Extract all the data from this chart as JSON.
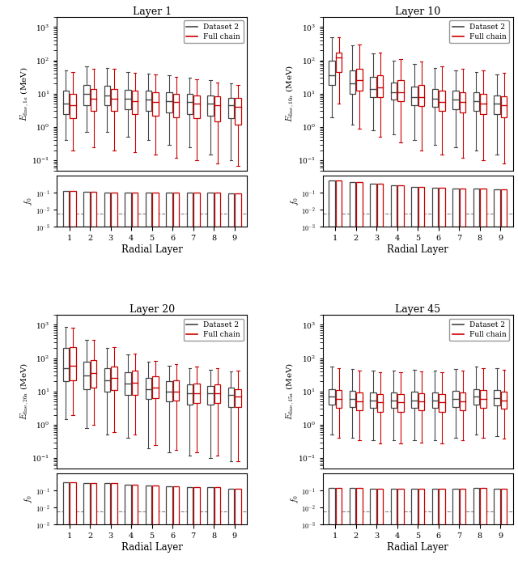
{
  "panels": [
    {
      "title": "Layer 1",
      "ylabel_main": "$E_{\\mathrm{fine},1a}$ (MeV)",
      "ylabel_f0": "$f_0$",
      "ylim_main": [
        0.05,
        2000
      ],
      "black_boxes": {
        "medians": [
          5.0,
          10.0,
          9.0,
          7.0,
          6.5,
          6.0,
          5.5,
          5.0,
          4.5
        ],
        "q1": [
          2.5,
          4.5,
          4.5,
          3.5,
          3.0,
          2.8,
          2.5,
          2.2,
          1.8
        ],
        "q3": [
          12.0,
          18.0,
          17.0,
          13.0,
          12.0,
          11.0,
          10.0,
          9.0,
          7.5
        ],
        "whislo": [
          0.4,
          0.7,
          0.7,
          0.5,
          0.4,
          0.3,
          0.25,
          0.15,
          0.1
        ],
        "whishi": [
          50.0,
          65.0,
          60.0,
          45.0,
          40.0,
          35.0,
          30.0,
          25.0,
          20.0
        ]
      },
      "red_boxes": {
        "medians": [
          4.5,
          7.0,
          7.0,
          6.0,
          5.5,
          5.5,
          5.0,
          4.5,
          4.0
        ],
        "q1": [
          1.8,
          3.0,
          3.0,
          2.5,
          2.2,
          2.0,
          1.8,
          1.5,
          1.2
        ],
        "q3": [
          10.0,
          14.0,
          14.0,
          12.0,
          11.0,
          10.0,
          9.0,
          8.5,
          7.5
        ],
        "whislo": [
          0.2,
          0.25,
          0.2,
          0.18,
          0.15,
          0.12,
          0.1,
          0.08,
          0.07
        ],
        "whishi": [
          45.0,
          55.0,
          55.0,
          42.0,
          38.0,
          32.0,
          27.0,
          22.0,
          18.0
        ]
      },
      "black_f0": {
        "medians": [
          0.0002,
          0.0002,
          0.0002,
          0.0002,
          0.0002,
          0.0002,
          0.0002,
          0.0002,
          0.0002
        ],
        "q1": [
          0.001,
          0.001,
          0.001,
          0.001,
          0.001,
          0.001,
          0.001,
          0.001,
          0.001
        ],
        "q3": [
          0.13,
          0.11,
          0.1,
          0.1,
          0.1,
          0.1,
          0.1,
          0.1,
          0.09
        ],
        "whislo": [
          0.001,
          0.001,
          0.001,
          0.001,
          0.001,
          0.001,
          0.001,
          0.001,
          0.001
        ],
        "whishi": [
          0.13,
          0.11,
          0.1,
          0.1,
          0.1,
          0.1,
          0.1,
          0.1,
          0.09
        ]
      },
      "red_f0": {
        "medians": [
          0.0002,
          0.0002,
          0.0002,
          0.0002,
          0.0002,
          0.0002,
          0.0002,
          0.0002,
          0.0002
        ],
        "q1": [
          0.001,
          0.001,
          0.001,
          0.001,
          0.001,
          0.001,
          0.001,
          0.001,
          0.001
        ],
        "q3": [
          0.13,
          0.11,
          0.1,
          0.1,
          0.1,
          0.1,
          0.1,
          0.1,
          0.09
        ],
        "whislo": [
          0.001,
          0.001,
          0.001,
          0.001,
          0.001,
          0.001,
          0.001,
          0.001,
          0.001
        ],
        "whishi": [
          0.13,
          0.11,
          0.1,
          0.1,
          0.1,
          0.1,
          0.1,
          0.1,
          0.09
        ]
      }
    },
    {
      "title": "Layer 10",
      "ylabel_main": "$E_{\\mathrm{fine},10a}$ (MeV)",
      "ylabel_f0": "$f_0$",
      "ylim_main": [
        0.05,
        2000
      ],
      "black_boxes": {
        "medians": [
          35.0,
          20.0,
          14.0,
          11.0,
          8.0,
          7.0,
          6.5,
          6.0,
          5.0
        ],
        "q1": [
          18.0,
          10.0,
          8.0,
          6.5,
          4.5,
          4.0,
          3.5,
          3.0,
          2.5
        ],
        "q3": [
          100.0,
          50.0,
          32.0,
          22.0,
          16.0,
          14.0,
          12.0,
          11.0,
          9.0
        ],
        "whislo": [
          2.0,
          1.2,
          0.8,
          0.6,
          0.4,
          0.3,
          0.25,
          0.2,
          0.15
        ],
        "whishi": [
          500.0,
          280.0,
          160.0,
          100.0,
          80.0,
          60.0,
          50.0,
          45.0,
          38.0
        ]
      },
      "red_boxes": {
        "medians": [
          120.0,
          25.0,
          15.0,
          11.0,
          8.0,
          5.5,
          5.5,
          5.0,
          4.5
        ],
        "q1": [
          45.0,
          12.0,
          8.0,
          6.0,
          4.2,
          3.0,
          2.8,
          2.5,
          2.0
        ],
        "q3": [
          170.0,
          55.0,
          35.0,
          25.0,
          18.0,
          12.0,
          11.0,
          10.0,
          8.5
        ],
        "whislo": [
          5.0,
          0.9,
          0.5,
          0.35,
          0.2,
          0.15,
          0.12,
          0.1,
          0.08
        ],
        "whishi": [
          500.0,
          300.0,
          170.0,
          110.0,
          90.0,
          65.0,
          55.0,
          50.0,
          42.0
        ]
      },
      "black_f0": {
        "medians": [
          0.0002,
          0.0002,
          0.0002,
          0.0002,
          0.0002,
          0.0002,
          0.0002,
          0.0002,
          0.0002
        ],
        "q1": [
          0.001,
          0.001,
          0.001,
          0.001,
          0.001,
          0.001,
          0.001,
          0.001,
          0.001
        ],
        "q3": [
          0.5,
          0.4,
          0.32,
          0.28,
          0.22,
          0.2,
          0.18,
          0.18,
          0.15
        ],
        "whislo": [
          0.001,
          0.001,
          0.001,
          0.001,
          0.001,
          0.001,
          0.001,
          0.001,
          0.001
        ],
        "whishi": [
          0.5,
          0.4,
          0.32,
          0.28,
          0.22,
          0.2,
          0.18,
          0.18,
          0.15
        ]
      },
      "red_f0": {
        "medians": [
          0.0002,
          0.0002,
          0.0002,
          0.0002,
          0.0002,
          0.0002,
          0.0002,
          0.0002,
          0.0002
        ],
        "q1": [
          0.001,
          0.001,
          0.001,
          0.001,
          0.001,
          0.001,
          0.001,
          0.001,
          0.001
        ],
        "q3": [
          0.5,
          0.4,
          0.32,
          0.28,
          0.22,
          0.2,
          0.18,
          0.18,
          0.15
        ],
        "whislo": [
          0.001,
          0.001,
          0.001,
          0.001,
          0.001,
          0.001,
          0.001,
          0.001,
          0.001
        ],
        "whishi": [
          0.5,
          0.4,
          0.32,
          0.28,
          0.22,
          0.2,
          0.18,
          0.18,
          0.15
        ]
      }
    },
    {
      "title": "Layer 20",
      "ylabel_main": "$E_{\\mathrm{fine},20a}$ (MeV)",
      "ylabel_f0": "$f_0$",
      "ylim_main": [
        0.05,
        2000
      ],
      "black_boxes": {
        "medians": [
          50.0,
          30.0,
          22.0,
          17.0,
          12.0,
          10.0,
          9.0,
          9.0,
          8.0
        ],
        "q1": [
          20.0,
          12.0,
          10.0,
          8.0,
          6.0,
          5.0,
          4.0,
          4.0,
          3.5
        ],
        "q3": [
          200.0,
          80.0,
          50.0,
          38.0,
          25.0,
          20.0,
          16.0,
          15.0,
          13.0
        ],
        "whislo": [
          1.5,
          0.8,
          0.5,
          0.4,
          0.2,
          0.15,
          0.12,
          0.1,
          0.08
        ],
        "whishi": [
          850.0,
          350.0,
          200.0,
          130.0,
          80.0,
          60.0,
          50.0,
          45.0,
          40.0
        ]
      },
      "red_boxes": {
        "medians": [
          60.0,
          35.0,
          25.0,
          18.0,
          13.0,
          10.0,
          9.0,
          9.0,
          7.0
        ],
        "q1": [
          22.0,
          13.0,
          11.0,
          8.0,
          6.5,
          5.5,
          4.5,
          4.5,
          3.5
        ],
        "q3": [
          220.0,
          90.0,
          55.0,
          42.0,
          28.0,
          22.0,
          17.0,
          16.0,
          12.0
        ],
        "whislo": [
          2.0,
          1.0,
          0.6,
          0.5,
          0.25,
          0.18,
          0.15,
          0.12,
          0.08
        ],
        "whishi": [
          800.0,
          360.0,
          220.0,
          140.0,
          85.0,
          65.0,
          55.0,
          50.0,
          42.0
        ]
      },
      "black_f0": {
        "medians": [
          0.0002,
          0.0002,
          0.0002,
          0.0002,
          0.0002,
          0.0002,
          0.0002,
          0.0002,
          0.0002
        ],
        "q1": [
          0.001,
          0.001,
          0.001,
          0.001,
          0.001,
          0.001,
          0.001,
          0.001,
          0.001
        ],
        "q3": [
          0.3,
          0.28,
          0.26,
          0.22,
          0.2,
          0.18,
          0.16,
          0.15,
          0.13
        ],
        "whislo": [
          0.001,
          0.001,
          0.001,
          0.001,
          0.001,
          0.001,
          0.001,
          0.001,
          0.001
        ],
        "whishi": [
          0.3,
          0.28,
          0.26,
          0.22,
          0.2,
          0.18,
          0.16,
          0.15,
          0.13
        ]
      },
      "red_f0": {
        "medians": [
          0.0002,
          0.0002,
          0.0002,
          0.0002,
          0.0002,
          0.0002,
          0.0002,
          0.0002,
          0.0002
        ],
        "q1": [
          0.001,
          0.001,
          0.001,
          0.001,
          0.001,
          0.001,
          0.001,
          0.001,
          0.001
        ],
        "q3": [
          0.3,
          0.28,
          0.26,
          0.22,
          0.2,
          0.18,
          0.16,
          0.15,
          0.13
        ],
        "whislo": [
          0.001,
          0.001,
          0.001,
          0.001,
          0.001,
          0.001,
          0.001,
          0.001,
          0.001
        ],
        "whishi": [
          0.3,
          0.28,
          0.26,
          0.22,
          0.2,
          0.18,
          0.16,
          0.15,
          0.13
        ]
      }
    },
    {
      "title": "Layer 45",
      "ylabel_main": "$E_{\\mathrm{fine},45a}$ (MeV)",
      "ylabel_f0": "$f_0$",
      "ylim_main": [
        0.05,
        2000
      ],
      "black_boxes": {
        "medians": [
          7.0,
          6.0,
          5.5,
          5.5,
          5.5,
          5.5,
          6.0,
          7.0,
          6.5
        ],
        "q1": [
          4.0,
          3.5,
          3.2,
          3.2,
          3.2,
          3.2,
          3.5,
          4.0,
          3.8
        ],
        "q3": [
          12.0,
          10.5,
          9.5,
          9.5,
          10.0,
          9.5,
          10.5,
          12.0,
          11.0
        ],
        "whislo": [
          0.5,
          0.4,
          0.35,
          0.35,
          0.35,
          0.35,
          0.4,
          0.5,
          0.45
        ],
        "whishi": [
          55.0,
          48.0,
          42.0,
          42.0,
          45.0,
          42.0,
          48.0,
          55.0,
          50.0
        ]
      },
      "red_boxes": {
        "medians": [
          6.0,
          5.2,
          4.8,
          4.8,
          5.0,
          4.8,
          5.2,
          6.0,
          5.5
        ],
        "q1": [
          3.2,
          2.8,
          2.5,
          2.5,
          2.8,
          2.5,
          2.8,
          3.2,
          3.0
        ],
        "q3": [
          11.0,
          9.5,
          8.5,
          8.5,
          9.0,
          8.5,
          9.5,
          11.0,
          10.0
        ],
        "whislo": [
          0.4,
          0.35,
          0.28,
          0.28,
          0.3,
          0.28,
          0.35,
          0.4,
          0.38
        ],
        "whishi": [
          50.0,
          42.0,
          38.0,
          38.0,
          40.0,
          38.0,
          42.0,
          50.0,
          45.0
        ]
      },
      "black_f0": {
        "medians": [
          0.0002,
          0.0002,
          0.0002,
          0.0002,
          0.0002,
          0.0002,
          0.0002,
          0.0002,
          0.0002
        ],
        "q1": [
          0.001,
          0.001,
          0.001,
          0.001,
          0.001,
          0.001,
          0.001,
          0.001,
          0.001
        ],
        "q3": [
          0.14,
          0.14,
          0.13,
          0.13,
          0.13,
          0.13,
          0.13,
          0.14,
          0.13
        ],
        "whislo": [
          0.001,
          0.001,
          0.001,
          0.001,
          0.001,
          0.001,
          0.001,
          0.001,
          0.001
        ],
        "whishi": [
          0.14,
          0.14,
          0.13,
          0.13,
          0.13,
          0.13,
          0.13,
          0.14,
          0.13
        ]
      },
      "red_f0": {
        "medians": [
          0.0002,
          0.0002,
          0.0002,
          0.0002,
          0.0002,
          0.0002,
          0.0002,
          0.0002,
          0.0002
        ],
        "q1": [
          0.001,
          0.001,
          0.001,
          0.001,
          0.001,
          0.001,
          0.001,
          0.001,
          0.001
        ],
        "q3": [
          0.14,
          0.14,
          0.13,
          0.13,
          0.13,
          0.13,
          0.13,
          0.14,
          0.13
        ],
        "whislo": [
          0.001,
          0.001,
          0.001,
          0.001,
          0.001,
          0.001,
          0.001,
          0.001,
          0.001
        ],
        "whishi": [
          0.14,
          0.14,
          0.13,
          0.13,
          0.13,
          0.13,
          0.13,
          0.14,
          0.13
        ]
      }
    }
  ],
  "n_layers": 9,
  "black_color": "#444444",
  "red_color": "#cc0000",
  "dashed_line_y": 0.006,
  "f0_ylim": [
    0.001,
    1.0
  ],
  "f0_yticks": [
    0.001,
    0.01,
    0.1
  ],
  "f0_yticklabels": [
    "$10^{-3}$",
    "$10^{-2}$",
    "$10^{-1}$"
  ],
  "xlabel": "Radial Layer"
}
